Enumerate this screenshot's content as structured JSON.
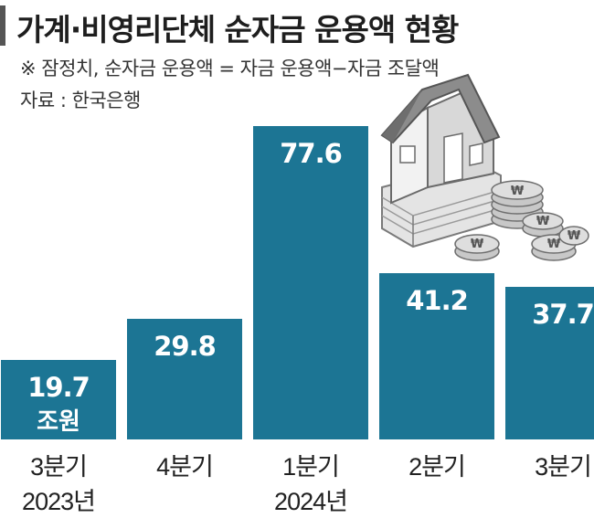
{
  "header": {
    "title": "가계·비영리단체 순자금 운용액 현황",
    "note": "※ 잠정치, 순자금 운용액 = 자금 운용액−자금 조달액",
    "source": "자료 : 한국은행"
  },
  "colors": {
    "bar": "#1c7594",
    "accent": "#555555"
  },
  "illustration": {
    "icon": "house-on-money-with-won-coins-icon"
  },
  "chart_data": {
    "type": "bar",
    "title": "가계·비영리단체 순자금 운용액 현황",
    "categories": [
      "3분기",
      "4분기",
      "1분기",
      "2분기",
      "3분기"
    ],
    "year_labels": [
      "2023년",
      "",
      "2024년",
      "",
      ""
    ],
    "values": [
      19.7,
      29.8,
      77.6,
      41.2,
      37.7
    ],
    "value_labels": [
      "19.7",
      "29.8",
      "77.6",
      "41.2",
      "37.7"
    ],
    "unit": "조원",
    "ylim": [
      0,
      77.6
    ],
    "grid": false,
    "legend": "none"
  }
}
